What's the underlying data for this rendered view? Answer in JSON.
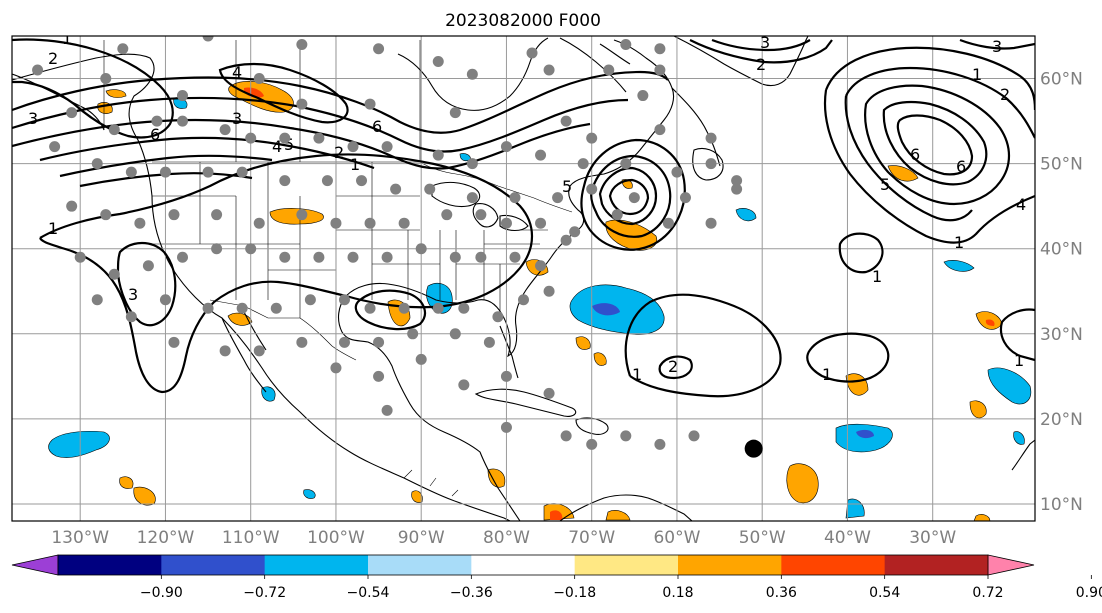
{
  "title": "2023082000 F000",
  "map": {
    "lon_range": [
      -138,
      -18
    ],
    "lat_range": [
      8,
      65
    ],
    "lon_ticks": [
      {
        "value": -130,
        "label": "130°W"
      },
      {
        "value": -120,
        "label": "120°W"
      },
      {
        "value": -110,
        "label": "110°W"
      },
      {
        "value": -100,
        "label": "100°W"
      },
      {
        "value": -90,
        "label": "90°W"
      },
      {
        "value": -80,
        "label": "80°W"
      },
      {
        "value": -70,
        "label": "70°W"
      },
      {
        "value": -60,
        "label": "60°W"
      },
      {
        "value": -50,
        "label": "50°W"
      },
      {
        "value": -40,
        "label": "40°W"
      },
      {
        "value": -30,
        "label": "30°W"
      }
    ],
    "lat_ticks": [
      {
        "value": 10,
        "label": "10°N"
      },
      {
        "value": 20,
        "label": "20°N"
      },
      {
        "value": 30,
        "label": "30°N"
      },
      {
        "value": 40,
        "label": "40°N"
      },
      {
        "value": 50,
        "label": "50°N"
      },
      {
        "value": 60,
        "label": "60°N"
      }
    ],
    "colors": {
      "grid": "#9a9a9a",
      "station": "#808080",
      "marker": "#000000"
    },
    "stations": [
      [
        -125,
        63.5
      ],
      [
        -115,
        65
      ],
      [
        -104,
        64
      ],
      [
        -95,
        63.5
      ],
      [
        -84,
        60.5
      ],
      [
        -88,
        62
      ],
      [
        -77,
        63
      ],
      [
        -75,
        61
      ],
      [
        -68,
        61
      ],
      [
        -66,
        64
      ],
      [
        -62,
        61
      ],
      [
        -64,
        58
      ],
      [
        -62,
        63.5
      ],
      [
        -135,
        61
      ],
      [
        -127,
        60
      ],
      [
        -118,
        58
      ],
      [
        -109,
        60
      ],
      [
        -104,
        57
      ],
      [
        -96,
        57
      ],
      [
        -86,
        56
      ],
      [
        -73,
        55
      ],
      [
        -70,
        53
      ],
      [
        -62,
        54
      ],
      [
        -56,
        53
      ],
      [
        -131,
        56
      ],
      [
        -126,
        54
      ],
      [
        -121,
        55
      ],
      [
        -118,
        55
      ],
      [
        -113,
        54
      ],
      [
        -110,
        53
      ],
      [
        -106,
        53
      ],
      [
        -102,
        53
      ],
      [
        -98,
        52
      ],
      [
        -94,
        52
      ],
      [
        -88,
        51
      ],
      [
        -84,
        50
      ],
      [
        -80,
        52
      ],
      [
        -76,
        51
      ],
      [
        -71,
        50
      ],
      [
        -66,
        50
      ],
      [
        -60,
        49
      ],
      [
        -56,
        50
      ],
      [
        -53,
        48
      ],
      [
        -133,
        52
      ],
      [
        -128,
        50
      ],
      [
        -124,
        49
      ],
      [
        -120,
        49
      ],
      [
        -115,
        49
      ],
      [
        -111,
        49
      ],
      [
        -106,
        48
      ],
      [
        -101,
        48
      ],
      [
        -97,
        48
      ],
      [
        -93,
        47
      ],
      [
        -89,
        47
      ],
      [
        -84,
        46
      ],
      [
        -79,
        46
      ],
      [
        -74,
        46
      ],
      [
        -70,
        47
      ],
      [
        -65,
        46
      ],
      [
        -59,
        46
      ],
      [
        -53,
        47
      ],
      [
        -131,
        45
      ],
      [
        -127,
        44
      ],
      [
        -123,
        43
      ],
      [
        -119,
        44
      ],
      [
        -114,
        44
      ],
      [
        -109,
        43
      ],
      [
        -104,
        44
      ],
      [
        -100,
        43
      ],
      [
        -96,
        43
      ],
      [
        -92,
        43
      ],
      [
        -87,
        44
      ],
      [
        -83,
        44
      ],
      [
        -80,
        43
      ],
      [
        -76,
        43
      ],
      [
        -72,
        42
      ],
      [
        -67,
        44
      ],
      [
        -61,
        43
      ],
      [
        -56,
        43
      ],
      [
        -130,
        39
      ],
      [
        -126,
        37
      ],
      [
        -122,
        38
      ],
      [
        -118,
        39
      ],
      [
        -114,
        40
      ],
      [
        -110,
        40
      ],
      [
        -106,
        39
      ],
      [
        -102,
        39
      ],
      [
        -98,
        39
      ],
      [
        -94,
        39
      ],
      [
        -90,
        40
      ],
      [
        -86,
        39
      ],
      [
        -83,
        39
      ],
      [
        -79,
        39
      ],
      [
        -76,
        38
      ],
      [
        -73,
        41
      ],
      [
        -128,
        34
      ],
      [
        -124,
        32
      ],
      [
        -120,
        34
      ],
      [
        -115,
        33
      ],
      [
        -111,
        33
      ],
      [
        -107,
        33
      ],
      [
        -103,
        34
      ],
      [
        -99,
        34
      ],
      [
        -96,
        33
      ],
      [
        -92,
        33
      ],
      [
        -88,
        33
      ],
      [
        -85,
        33
      ],
      [
        -81,
        32
      ],
      [
        -78,
        34
      ],
      [
        -75,
        35
      ],
      [
        -119,
        29
      ],
      [
        -113,
        28
      ],
      [
        -109,
        28
      ],
      [
        -104,
        29
      ],
      [
        -99,
        29
      ],
      [
        -95,
        29
      ],
      [
        -91,
        30
      ],
      [
        -86,
        30
      ],
      [
        -82,
        29
      ],
      [
        -100,
        26
      ],
      [
        -95,
        25
      ],
      [
        -90,
        27
      ],
      [
        -85,
        24
      ],
      [
        -80,
        25
      ],
      [
        -75,
        23
      ],
      [
        -73,
        18
      ],
      [
        -70,
        17
      ],
      [
        -66,
        18
      ],
      [
        -62,
        17
      ],
      [
        -58,
        18
      ],
      [
        -80,
        19
      ],
      [
        -94,
        21
      ]
    ],
    "marker": {
      "lon": -51,
      "lat": 16.5
    }
  },
  "contour_labels": [
    "1",
    "2",
    "3",
    "4",
    "5",
    "6"
  ],
  "colorbar": {
    "colors": [
      "#9c3fd6",
      "#000080",
      "#3050cc",
      "#00b5ee",
      "#a8dcf8",
      "#ffffff",
      "#ffe884",
      "#ffa500",
      "#ff4500",
      "#b22222",
      "#ff82ab"
    ],
    "under_color": "#9c3fd6",
    "over_color": "#ff82ab",
    "tick_labels": [
      "−0.90",
      "−0.72",
      "−0.54",
      "−0.36",
      "−0.18",
      "0.18",
      "0.36",
      "0.54",
      "0.72",
      "0.90"
    ]
  }
}
